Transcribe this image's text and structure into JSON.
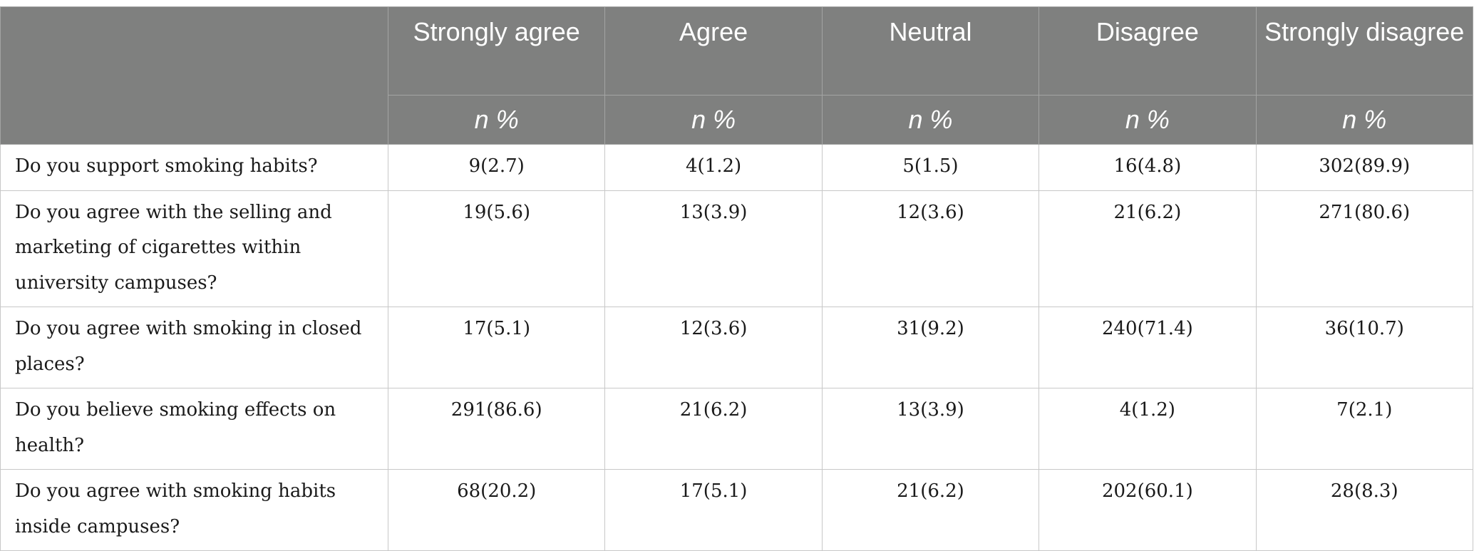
{
  "header": {
    "columns": [
      "Strongly agree",
      "Agree",
      "Neutral",
      "Disagree",
      "Strongly disagree"
    ],
    "subheader": [
      "n %",
      "n %",
      "n %",
      "n %",
      "n %"
    ]
  },
  "rows": [
    {
      "question": "Do you support smoking habits?",
      "values": [
        "9(2.7)",
        "4(1.2)",
        "5(1.5)",
        "16(4.8)",
        "302(89.9)"
      ]
    },
    {
      "question": "Do you agree with the selling and marketing of cigarettes within university campuses?",
      "values": [
        "19(5.6)",
        "13(3.9)",
        "12(3.6)",
        "21(6.2)",
        "271(80.6)"
      ]
    },
    {
      "question": "Do you agree with smoking in closed places?",
      "values": [
        "17(5.1)",
        "12(3.6)",
        "31(9.2)",
        "240(71.4)",
        "36(10.7)"
      ]
    },
    {
      "question": "Do you believe smoking effects on health?",
      "values": [
        "291(86.6)",
        "21(6.2)",
        "13(3.9)",
        "4(1.2)",
        "7(2.1)"
      ]
    },
    {
      "question": "Do you agree with smoking habits inside campuses?",
      "values": [
        "68(20.2)",
        "17(5.1)",
        "21(6.2)",
        "202(60.1)",
        "28(8.3)"
      ]
    }
  ]
}
